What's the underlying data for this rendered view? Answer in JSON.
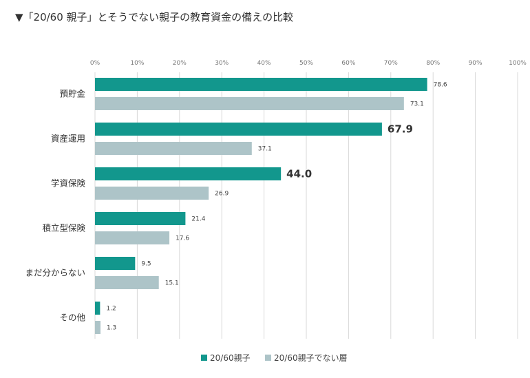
{
  "title": "▼「20/60 親子」とそうでない親子の教育資金の備えの比較",
  "chart_data": {
    "type": "bar",
    "orientation": "horizontal",
    "title": "▼「20/60 親子」とそうでない親子の教育資金の備えの比較",
    "categories": [
      "預貯金",
      "資産運用",
      "学資保険",
      "積立型保険",
      "まだ分からない",
      "その他"
    ],
    "xlim": [
      0,
      100
    ],
    "ticks": [
      "0%",
      "10%",
      "20%",
      "30%",
      "40%",
      "50%",
      "60%",
      "70%",
      "80%",
      "90%",
      "100%"
    ],
    "grid": true,
    "legend_position": "bottom",
    "series": [
      {
        "name": "20/60親子",
        "color": "#12978d",
        "values": [
          78.6,
          67.9,
          44.0,
          21.4,
          9.5,
          1.2
        ],
        "labels": [
          "78.6",
          "67.9",
          "44.0",
          "21.4",
          "9.5",
          "1.2"
        ]
      },
      {
        "name": "20/60親子でない層",
        "color": "#adc4c8",
        "values": [
          73.1,
          37.1,
          26.9,
          17.6,
          15.1,
          1.3
        ],
        "labels": [
          "73.1",
          "37.1",
          "26.9",
          "17.6",
          "15.1",
          "1.3"
        ]
      }
    ],
    "emphasized": [
      [
        false,
        true,
        true,
        false,
        false,
        false
      ],
      [
        false,
        false,
        false,
        false,
        false,
        false
      ]
    ]
  }
}
